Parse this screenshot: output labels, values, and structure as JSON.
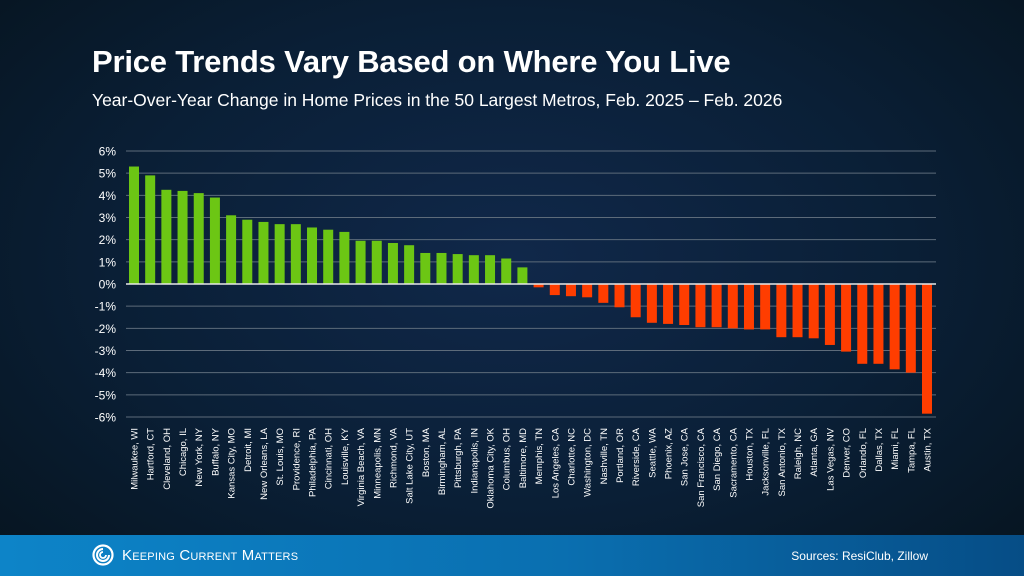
{
  "header": {
    "title": "Price Trends Vary Based on Where You Live",
    "subtitle": "Year-Over-Year Change in Home Prices in the 50 Largest Metros, Feb. 2025 – Feb. 2026"
  },
  "chart_data": {
    "type": "bar",
    "title": "Price Trends Vary Based on Where You Live",
    "subtitle": "Year-Over-Year Change in Home Prices in the 50 Largest Metros, Feb. 2025 – Feb. 2026",
    "ylim": [
      -6,
      6
    ],
    "yticks": [
      "6%",
      "5%",
      "4%",
      "3%",
      "2%",
      "1%",
      "0%",
      "-1%",
      "-2%",
      "-3%",
      "-4%",
      "-5%",
      "-6%"
    ],
    "grid": true,
    "colors": {
      "positive": "#6cc614",
      "negative": "#ff3d00"
    },
    "categories": [
      "Milwaukee, WI",
      "Hartford, CT",
      "Cleveland, OH",
      "Chicago, IL",
      "New York, NY",
      "Buffalo, NY",
      "Kansas City, MO",
      "Detroit, MI",
      "New Orleans, LA",
      "St. Louis, MO",
      "Providence, RI",
      "Philadelphia, PA",
      "Cincinnati, OH",
      "Louisville, KY",
      "Virginia Beach, VA",
      "Minneapolis, MN",
      "Richmond, VA",
      "Salt Lake City, UT",
      "Boston, MA",
      "Birmingham, AL",
      "Pittsburgh, PA",
      "Indianapolis, IN",
      "Oklahoma City, OK",
      "Columbus, OH",
      "Baltimore, MD",
      "Memphis, TN",
      "Los Angeles, CA",
      "Charlotte, NC",
      "Washington, DC",
      "Nashville, TN",
      "Portland, OR",
      "Riverside, CA",
      "Seattle, WA",
      "Phoenix, AZ",
      "San Jose, CA",
      "San Francisco, CA",
      "San Diego, CA",
      "Sacramento, CA",
      "Houston, TX",
      "Jacksonville, FL",
      "San Antonio, TX",
      "Raleigh, NC",
      "Atlanta, GA",
      "Las Vegas, NV",
      "Denver, CO",
      "Orlando, FL",
      "Dallas, TX",
      "Miami, FL",
      "Tampa, FL",
      "Austin, TX"
    ],
    "values": [
      5.3,
      4.9,
      4.25,
      4.2,
      4.1,
      3.9,
      3.1,
      2.9,
      2.8,
      2.7,
      2.7,
      2.55,
      2.45,
      2.35,
      1.95,
      1.95,
      1.85,
      1.75,
      1.4,
      1.4,
      1.35,
      1.3,
      1.3,
      1.15,
      0.75,
      -0.15,
      -0.5,
      -0.55,
      -0.6,
      -0.85,
      -1.05,
      -1.5,
      -1.75,
      -1.8,
      -1.85,
      -1.95,
      -1.95,
      -2.0,
      -2.05,
      -2.05,
      -2.4,
      -2.4,
      -2.45,
      -2.75,
      -3.05,
      -3.6,
      -3.6,
      -3.85,
      -4.0,
      -5.85
    ]
  },
  "footer": {
    "logo_text": "Keeping Current Matters",
    "sources": "Sources: ResiClub, Zillow"
  }
}
